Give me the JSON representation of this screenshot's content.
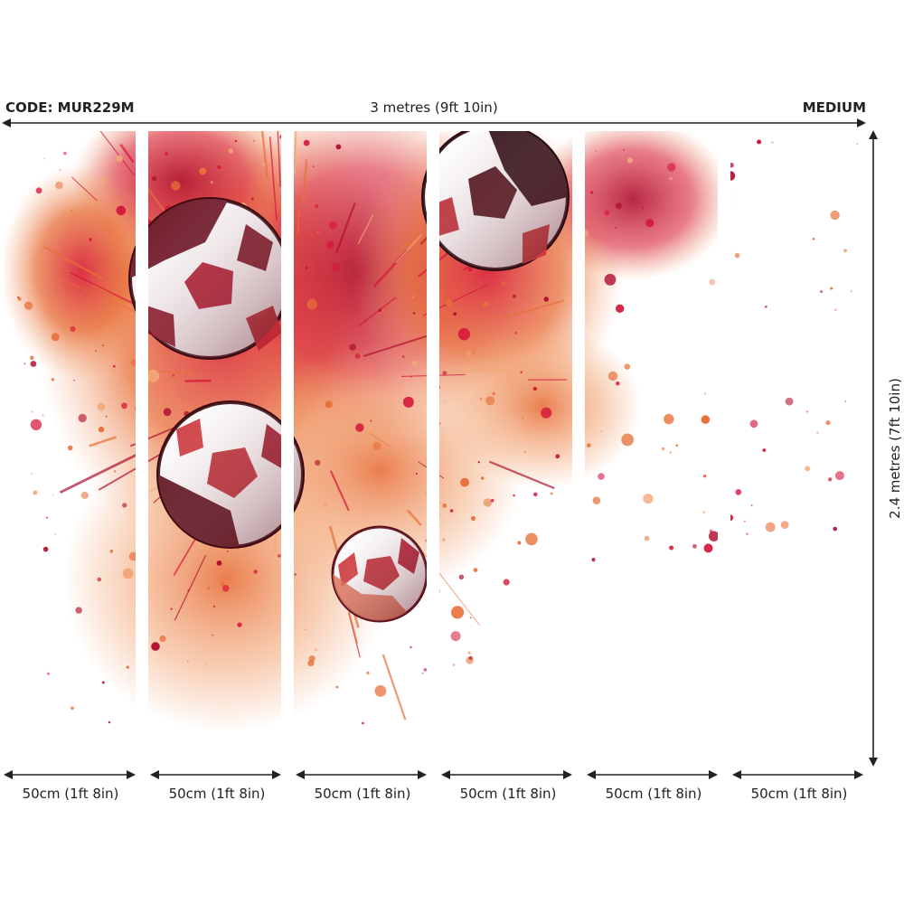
{
  "product": {
    "code": "CODE: MUR229M",
    "size": "MEDIUM"
  },
  "dimensions": {
    "width": "3 metres (9ft 10in)",
    "height": "2.4 metres (7ft 10in)"
  },
  "panels": [
    {
      "label": "50cm (1ft 8in)"
    },
    {
      "label": "50cm (1ft 8in)"
    },
    {
      "label": "50cm (1ft 8in)"
    },
    {
      "label": "50cm (1ft 8in)"
    },
    {
      "label": "50cm (1ft 8in)"
    },
    {
      "label": "50cm (1ft 8in)"
    }
  ],
  "colors": {
    "text": "#222222",
    "splash_red": "#d4163a",
    "splash_orange": "#e8703a",
    "splash_peach": "#f2a878",
    "splash_crimson": "#b0102e",
    "ball_dark": "#3a0a10"
  }
}
